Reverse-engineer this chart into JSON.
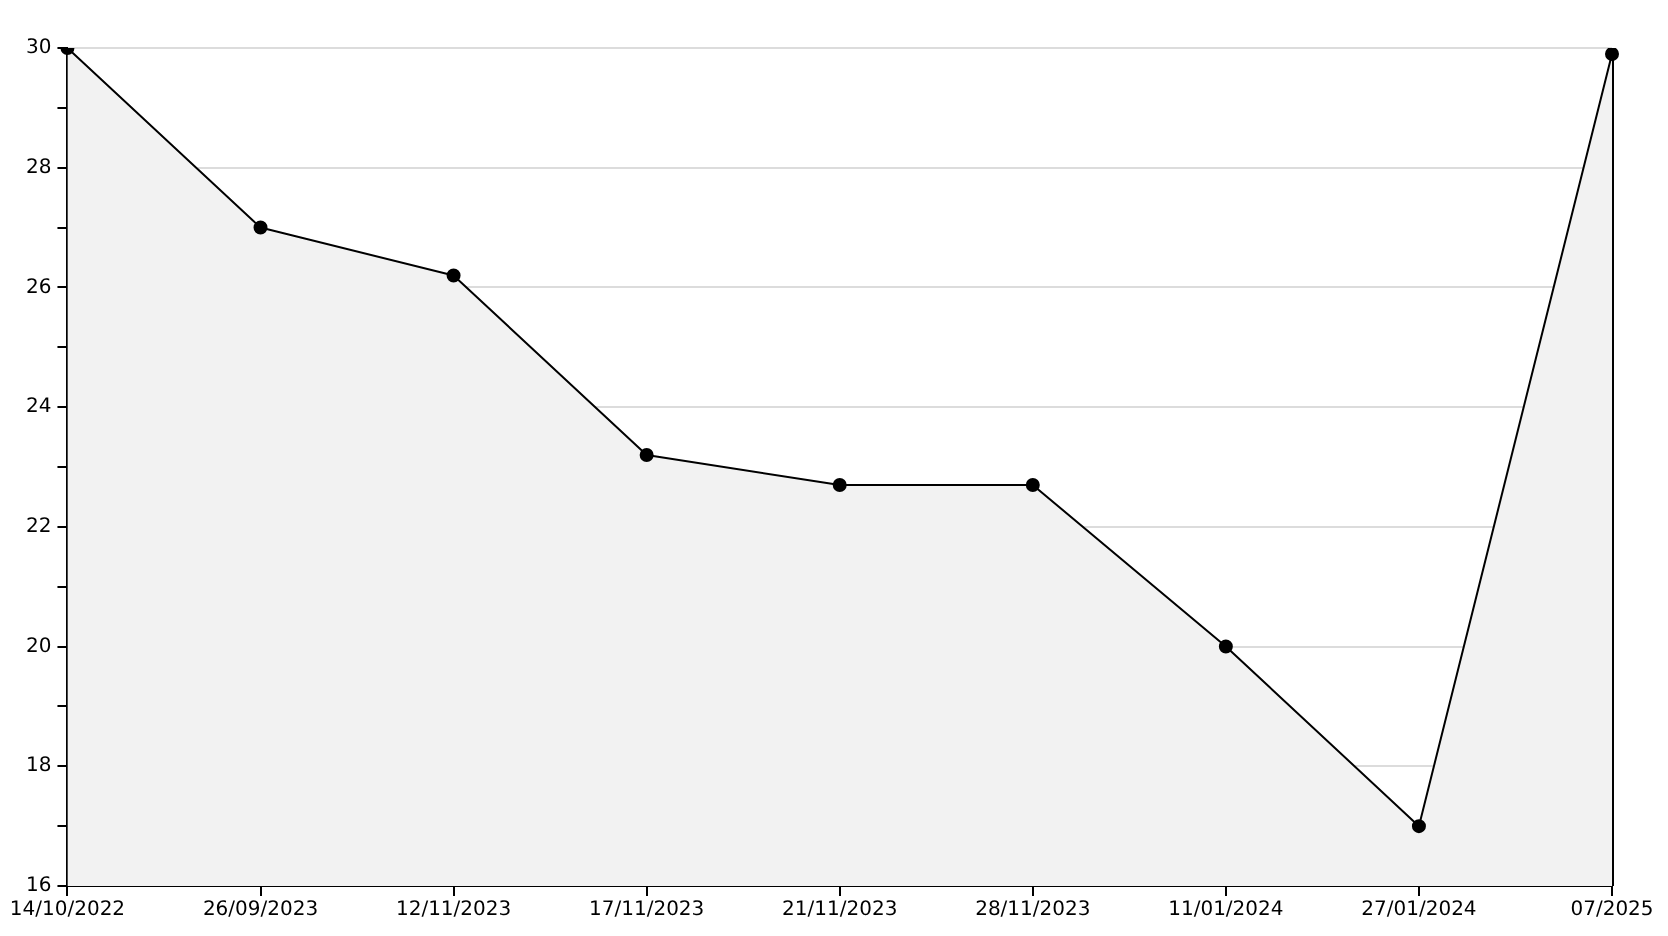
{
  "chart_data": {
    "type": "area",
    "categories": [
      "14/10/2022",
      "26/09/2023",
      "12/11/2023",
      "17/11/2023",
      "21/11/2023",
      "28/11/2023",
      "11/01/2024",
      "27/01/2024",
      "07/2025"
    ],
    "series": [
      {
        "color": "#000000",
        "values": [
          30,
          27,
          26.2,
          23.2,
          22.7,
          22.7,
          20,
          17,
          29.9
        ]
      }
    ],
    "ylim": [
      16,
      30
    ],
    "yticks": [
      16,
      {
        "value": 17,
        "label": null
      },
      18,
      {
        "value": 19,
        "label": null
      },
      20,
      {
        "value": 21,
        "label": null
      },
      22,
      {
        "value": 23,
        "label": null
      },
      24,
      {
        "value": 25,
        "label": null
      },
      26,
      {
        "value": 27,
        "label": null
      },
      28,
      {
        "value": 29,
        "label": null
      },
      30
    ],
    "grid": "y",
    "marker": "circle",
    "line_style": "solid",
    "legend": false
  }
}
